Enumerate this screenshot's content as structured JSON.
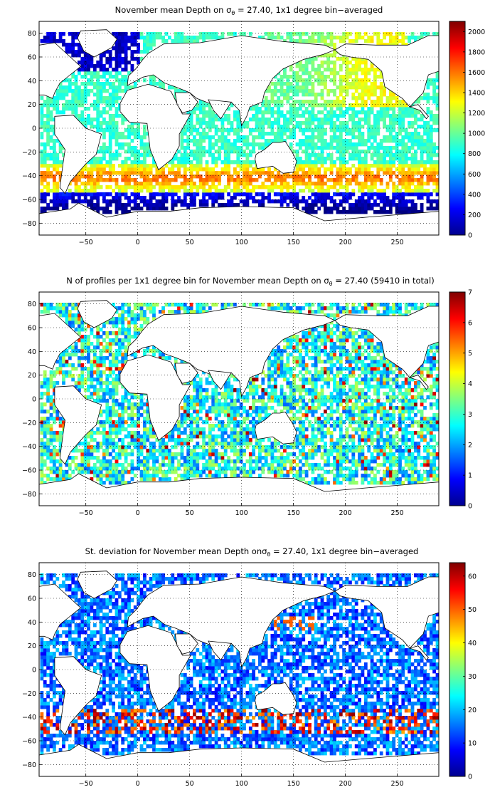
{
  "chart_data": [
    {
      "type": "heatmap",
      "title": "November mean Depth on σθ = 27.40, 1x1 degree bin−averaged",
      "title_parts": {
        "pre": "November mean Depth on ",
        "sym": "σ",
        "sub": "θ",
        "post": " = 27.40, 1x1 degree bin−averaged"
      },
      "xlim": [
        -95,
        290
      ],
      "ylim": [
        -90,
        90
      ],
      "xticks": [
        -50,
        0,
        50,
        100,
        150,
        200,
        250
      ],
      "yticks": [
        80,
        60,
        40,
        20,
        0,
        -20,
        -40,
        -60,
        -80
      ],
      "clim": [
        0,
        2100
      ],
      "cticks": [
        0,
        200,
        400,
        600,
        800,
        1000,
        1200,
        1400,
        1600,
        1800,
        2000
      ],
      "grid": true,
      "colormap": "jet",
      "colorbar": "right"
    },
    {
      "type": "heatmap",
      "title": "N of profiles per 1x1 degree bin for November mean Depth on σθ = 27.40 (59410 in total)",
      "title_parts": {
        "pre": "N of profiles per 1x1 degree bin for November mean Depth on ",
        "sym": "σ",
        "sub": "θ",
        "post": " = 27.40 (59410 in total)"
      },
      "xlim": [
        -95,
        290
      ],
      "ylim": [
        -90,
        90
      ],
      "xticks": [
        -50,
        0,
        50,
        100,
        150,
        200,
        250
      ],
      "yticks": [
        80,
        60,
        40,
        20,
        0,
        -20,
        -40,
        -60,
        -80
      ],
      "clim": [
        0,
        7
      ],
      "cticks": [
        0,
        1,
        2,
        3,
        4,
        5,
        6,
        7
      ],
      "grid": true,
      "colormap": "jet",
      "colorbar": "right"
    },
    {
      "type": "heatmap",
      "title": "St. deviation for November mean Depth onσθ = 27.40, 1x1 degree bin−averaged",
      "title_parts": {
        "pre": "St. deviation for November mean Depth on",
        "sym": "σ",
        "sub": "θ",
        "post": " = 27.40, 1x1 degree bin−averaged"
      },
      "xlim": [
        -95,
        290
      ],
      "ylim": [
        -90,
        90
      ],
      "xticks": [
        -50,
        0,
        50,
        100,
        150,
        200,
        250
      ],
      "yticks": [
        80,
        60,
        40,
        20,
        0,
        -20,
        -40,
        -60,
        -80
      ],
      "clim": [
        0,
        64
      ],
      "cticks": [
        0,
        10,
        20,
        30,
        40,
        50,
        60
      ],
      "grid": true,
      "colormap": "jet",
      "colorbar": "right"
    }
  ]
}
